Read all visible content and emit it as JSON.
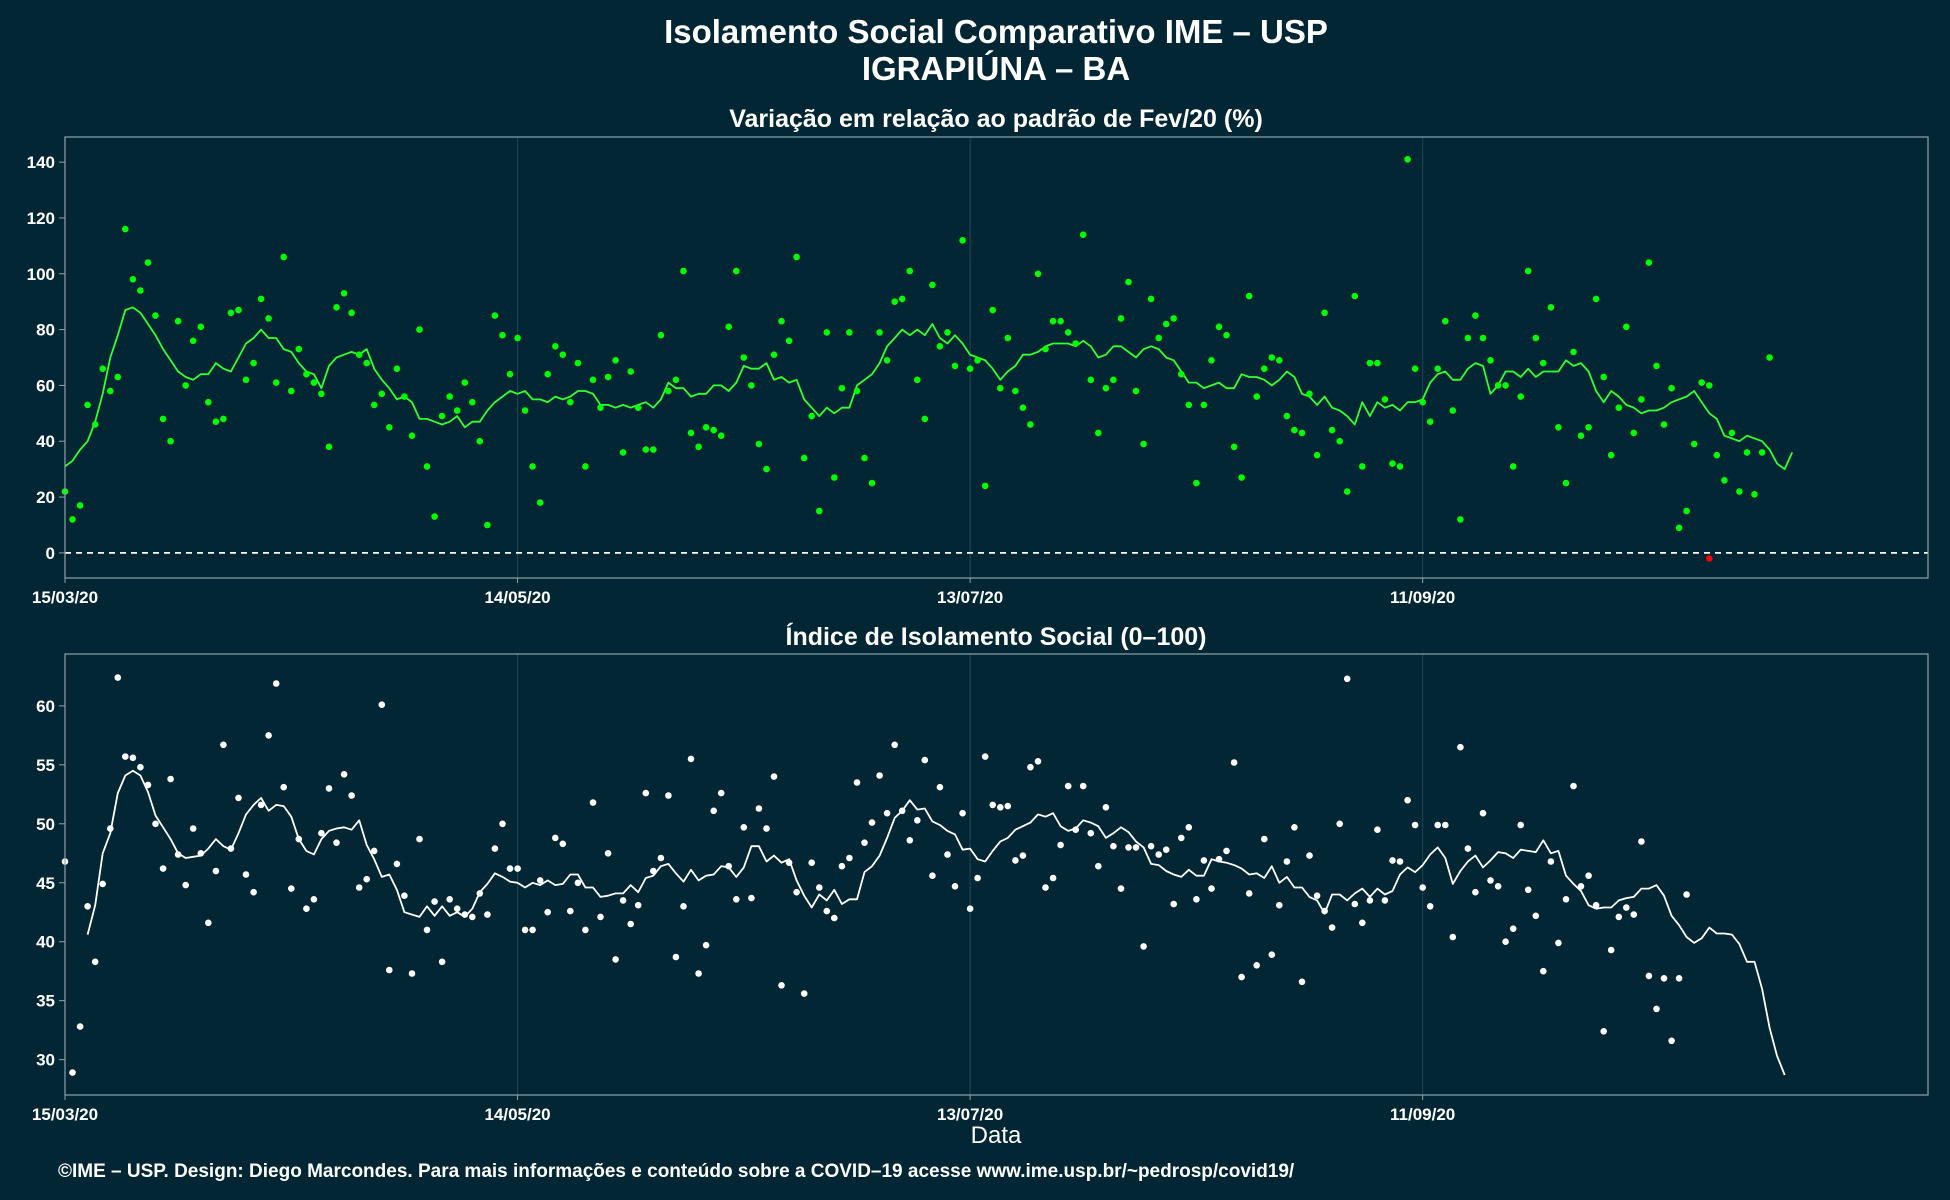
{
  "title_line1": "Isolamento Social Comparativo IME – USP",
  "title_line2": "IGRAPIÚNA – BA",
  "xlabel": "Data",
  "footer": "©IME – USP. Design: Diego Marcondes. Para mais informações e conteúdo sobre a COVID–19 acesse www.ime.usp.br/~pedrosp/covid19/",
  "colors": {
    "background": "#022633",
    "panel_border": "#8fa3aa",
    "grid": "#1f4654",
    "top_points": "#00ff00",
    "top_line": "#33ff33",
    "negative_point": "#ff0000",
    "bottom_points": "#ffffff",
    "bottom_line": "#ffffff",
    "zero_line": "#ffffff"
  },
  "chart_data": [
    {
      "type": "scatter",
      "title": "Variação em relação ao padrão de Fev/20 (%)",
      "x_start": "15/03/20",
      "x_end": "17/11/20",
      "x_ticks": [
        "15/03/20",
        "14/05/20",
        "13/07/20",
        "11/09/20"
      ],
      "y_ticks": [
        0,
        20,
        40,
        60,
        80,
        100,
        120,
        140
      ],
      "ylim": [
        -9,
        149
      ],
      "reference_line": 0,
      "grid": true,
      "series": [
        {
          "values": [
            22,
            12,
            17,
            53,
            46,
            66,
            58,
            63,
            116,
            98,
            94,
            104,
            85,
            48,
            40,
            83,
            60,
            76,
            81,
            54,
            47,
            48,
            86,
            87,
            62,
            68,
            91,
            84,
            61,
            106,
            58,
            73,
            64,
            61,
            57,
            38,
            88,
            93,
            86,
            71,
            68,
            53,
            57,
            45,
            66,
            56,
            42,
            80,
            31,
            13,
            49,
            56,
            51,
            61,
            54,
            40,
            10,
            85,
            78,
            64,
            77,
            51,
            31,
            18,
            64,
            74,
            71,
            54,
            68,
            31,
            62,
            52,
            63,
            69,
            36,
            65,
            52,
            37,
            37,
            78,
            58,
            62,
            101,
            43,
            38,
            45,
            44,
            42,
            81,
            101,
            70,
            60,
            39,
            30,
            71,
            83,
            76,
            106,
            34,
            49,
            15,
            79,
            27,
            59,
            79,
            58,
            34,
            25,
            79,
            69,
            90,
            91,
            101,
            62,
            48,
            96,
            74,
            79,
            67,
            112,
            66,
            69,
            24,
            87,
            59,
            77,
            58,
            52,
            46,
            100,
            73,
            83,
            83,
            79,
            75,
            114,
            62,
            43,
            59,
            62,
            84,
            97,
            58,
            39,
            91,
            77,
            82,
            84,
            64,
            53,
            25,
            53,
            69,
            81,
            78,
            38,
            27,
            92,
            56,
            66,
            70,
            69,
            49,
            44,
            43,
            57,
            35,
            86,
            44,
            40,
            22,
            92,
            31,
            68,
            68,
            55,
            32,
            31,
            141,
            66,
            54,
            47,
            66,
            83,
            51,
            12,
            77,
            85,
            77,
            69,
            60,
            60,
            31,
            56,
            101,
            77,
            68,
            88,
            45,
            25,
            72,
            42,
            45,
            91,
            63,
            35,
            52,
            81,
            43,
            55,
            104,
            67,
            46,
            59,
            9,
            15,
            39,
            61,
            60,
            35,
            26,
            43,
            22,
            36,
            21,
            36,
            70
          ],
          "negative_points": [
            {
              "day": 218,
              "value": -2
            }
          ],
          "moving_average_start_day": 0,
          "moving_average": [
            31,
            33,
            37,
            40,
            47,
            57,
            70,
            78,
            87,
            88,
            86,
            82,
            78,
            73,
            69,
            65,
            63,
            62,
            64,
            64,
            68,
            66,
            65,
            70,
            75,
            77,
            80,
            77,
            77,
            73,
            72,
            68,
            65,
            64,
            59,
            67,
            70,
            71,
            72,
            71,
            73,
            66,
            62,
            59,
            55,
            56,
            54,
            48,
            48,
            47,
            46,
            47,
            49,
            45,
            47,
            47,
            51,
            54,
            56,
            58,
            57,
            58,
            55,
            55,
            54,
            56,
            55,
            56,
            58,
            58,
            57,
            53,
            53,
            52,
            53,
            52,
            53,
            54,
            52,
            55,
            61,
            59,
            59,
            56,
            57,
            57,
            60,
            60,
            58,
            61,
            67,
            66,
            66,
            68,
            62,
            63,
            61,
            62,
            55,
            52,
            49,
            52,
            50,
            52,
            52,
            60,
            62,
            64,
            68,
            74,
            77,
            80,
            78,
            80,
            78,
            82,
            77,
            75,
            78,
            75,
            71,
            70,
            69,
            66,
            62,
            65,
            67,
            71,
            71,
            72,
            74,
            75,
            75,
            75,
            74,
            76,
            74,
            70,
            71,
            74,
            74,
            72,
            70,
            73,
            74,
            73,
            70,
            69,
            65,
            61,
            61,
            59,
            60,
            61,
            59,
            59,
            64,
            63,
            63,
            62,
            60,
            62,
            65,
            63,
            57,
            56,
            53,
            56,
            52,
            51,
            49,
            46,
            54,
            49,
            54,
            52,
            53,
            51,
            54,
            54,
            55,
            61,
            64,
            65,
            62,
            62,
            66,
            68,
            67,
            57,
            60,
            65,
            65,
            63,
            66,
            63,
            65,
            65,
            65,
            69,
            67,
            68,
            65,
            58,
            54,
            58,
            56,
            53,
            52,
            50,
            51,
            51,
            52,
            54,
            55,
            56,
            58,
            54,
            50,
            48,
            42,
            41,
            40,
            42,
            41,
            40,
            37,
            32,
            30,
            36
          ]
        }
      ]
    },
    {
      "type": "scatter",
      "title": "Índice de Isolamento Social (0–100)",
      "x_start": "15/03/20",
      "x_end": "17/11/20",
      "x_ticks": [
        "15/03/20",
        "14/05/20",
        "13/07/20",
        "11/09/20"
      ],
      "y_ticks": [
        30,
        35,
        40,
        45,
        50,
        55,
        60
      ],
      "ylim": [
        27,
        64.4
      ],
      "grid": true,
      "series": [
        {
          "values": [
            46.8,
            28.9,
            32.8,
            43.0,
            38.3,
            44.9,
            49.6,
            62.4,
            55.7,
            55.6,
            54.8,
            53.3,
            50.0,
            46.2,
            53.8,
            47.4,
            44.8,
            49.6,
            47.5,
            41.6,
            46.0,
            56.7,
            47.9,
            52.2,
            45.7,
            44.2,
            51.6,
            57.5,
            61.9,
            53.1,
            44.5,
            48.7,
            42.8,
            43.6,
            49.2,
            53.0,
            48.4,
            54.2,
            52.4,
            44.6,
            45.3,
            47.7,
            60.1,
            37.6,
            46.6,
            43.9,
            37.3,
            48.7,
            41.0,
            43.4,
            38.3,
            43.6,
            42.8,
            42.3,
            42.1,
            44.1,
            42.3,
            47.9,
            50.0,
            46.2,
            46.2,
            41.0,
            41.0,
            45.2,
            42.5,
            48.8,
            48.3,
            42.6,
            45.0,
            41.0,
            51.8,
            42.1,
            47.5,
            38.5,
            43.5,
            41.5,
            43.1,
            52.6,
            46.0,
            47.1,
            52.4,
            38.7,
            43.0,
            55.5,
            37.3,
            39.7,
            51.1,
            52.6,
            46.4,
            43.6,
            49.7,
            43.7,
            51.3,
            49.6,
            54.0,
            36.3,
            46.7,
            44.2,
            35.6,
            46.7,
            44.6,
            42.6,
            42.0,
            46.4,
            47.1,
            53.5,
            48.4,
            50.1,
            54.1,
            50.9,
            56.7,
            51.1,
            48.6,
            50.3,
            55.4,
            45.6,
            53.1,
            47.4,
            44.7,
            50.9,
            42.8,
            45.4,
            55.7,
            51.6,
            51.4,
            51.5,
            46.9,
            47.3,
            54.8,
            55.3,
            44.6,
            45.4,
            48.2,
            53.2,
            49.5,
            53.2,
            49.2,
            46.4,
            51.4,
            48.1,
            44.5,
            48.0,
            48.0,
            39.6,
            48.1,
            47.4,
            47.8,
            43.2,
            48.8,
            49.7,
            43.6,
            46.9,
            44.5,
            47.0,
            47.7,
            55.2,
            37.0,
            44.1,
            38.0,
            48.7,
            38.9,
            43.1,
            46.8,
            49.7,
            36.6,
            47.3,
            43.9,
            42.6,
            41.2,
            50.0,
            62.3,
            43.2,
            41.6,
            43.5,
            49.5,
            43.5,
            46.9,
            46.8,
            52.0,
            49.9,
            44.6,
            43.0,
            49.9,
            49.9,
            40.4,
            56.5,
            47.9,
            44.2,
            50.9,
            45.2,
            44.7,
            40.0,
            41.1,
            49.9,
            44.4,
            42.2,
            37.5,
            46.8,
            39.9,
            43.6,
            53.2,
            44.7,
            45.6,
            43.1,
            32.4,
            39.3,
            42.1,
            42.9,
            42.3,
            48.5,
            37.1,
            34.3,
            36.9,
            31.6,
            36.9,
            44.0
          ],
          "moving_average_start_day": 3,
          "moving_average": [
            40.6,
            43.1,
            47.5,
            49.2,
            52.6,
            54.1,
            54.5,
            54.1,
            52.7,
            50.7,
            49.7,
            48.7,
            47.5,
            47.1,
            47.2,
            47.3,
            47.9,
            48.7,
            48.1,
            47.8,
            49.2,
            50.8,
            51.6,
            52.2,
            51.1,
            51.6,
            51.5,
            50.6,
            48.7,
            47.7,
            47.4,
            48.7,
            49.4,
            49.6,
            49.7,
            49.5,
            50.3,
            48.2,
            47.0,
            45.5,
            45.7,
            44.4,
            42.5,
            42.3,
            42.1,
            43.0,
            42.2,
            43.0,
            42.2,
            42.5,
            42.1,
            42.8,
            44.2,
            44.9,
            45.8,
            45.5,
            45.1,
            45.0,
            44.6,
            45.0,
            44.8,
            45.2,
            44.8,
            44.9,
            45.7,
            45.7,
            44.6,
            44.6,
            43.8,
            43.9,
            44.1,
            44.1,
            44.8,
            44.2,
            45.4,
            45.6,
            46.4,
            46.6,
            45.8,
            45.1,
            46.1,
            45.2,
            45.6,
            45.7,
            46.4,
            46.3,
            45.5,
            46.3,
            48.1,
            48.1,
            46.8,
            47.3,
            46.7,
            47.0,
            45.2,
            43.9,
            42.9,
            44.0,
            43.5,
            44.4,
            43.2,
            43.6,
            43.6,
            45.9,
            46.4,
            47.3,
            48.8,
            50.5,
            51.1,
            52.0,
            51.2,
            51.3,
            50.2,
            49.9,
            49.4,
            49.1,
            47.8,
            47.9,
            47.0,
            46.8,
            47.7,
            48.5,
            48.8,
            49.5,
            49.8,
            50.1,
            50.8,
            50.6,
            50.9,
            49.8,
            49.4,
            49.6,
            50.3,
            50.1,
            49.8,
            48.8,
            49.2,
            49.7,
            49.3,
            48.5,
            48.0,
            46.6,
            46.5,
            46.0,
            45.7,
            45.5,
            46.1,
            45.6,
            45.6,
            47.0,
            46.8,
            46.7,
            46.5,
            46.2,
            45.7,
            45.8,
            45.4,
            46.4,
            45.0,
            45.5,
            44.6,
            44.6,
            43.8,
            43.5,
            42.4,
            44.0,
            44.0,
            43.5,
            44.1,
            44.5,
            43.8,
            44.5,
            44.0,
            44.3,
            45.7,
            46.3,
            45.9,
            46.5,
            47.4,
            48.0,
            47.1,
            44.9,
            46.0,
            46.8,
            47.3,
            46.3,
            46.9,
            47.6,
            47.5,
            47.1,
            47.8,
            47.7,
            47.6,
            48.6,
            47.5,
            47.7,
            45.6,
            44.9,
            44.3,
            43.1,
            42.8,
            42.9,
            42.9,
            43.5,
            43.7,
            43.8,
            44.5,
            44.5,
            44.8,
            43.9,
            42.2,
            41.4,
            40.4,
            39.9,
            40.3,
            41.2,
            40.7,
            40.7,
            40.6,
            39.8,
            38.3,
            38.3,
            36.0,
            32.7,
            30.3,
            28.7
          ]
        }
      ]
    }
  ]
}
